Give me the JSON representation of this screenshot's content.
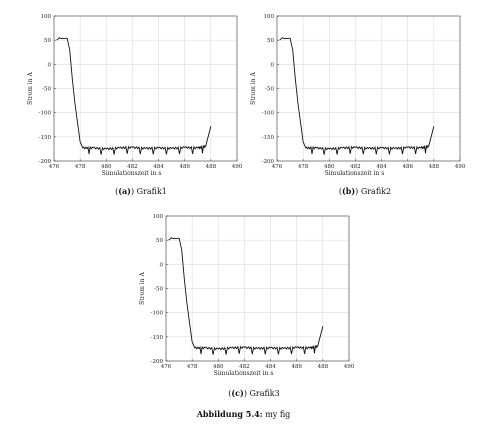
{
  "chart_data": [
    {
      "type": "line",
      "xlabel": "Simulationszeit in s",
      "ylabel": "Strom in A",
      "xlim": [
        476,
        490
      ],
      "ylim": [
        -200,
        100
      ],
      "xticks": [
        476,
        478,
        480,
        482,
        484,
        486,
        488,
        490
      ],
      "yticks": [
        -200,
        -150,
        -100,
        -50,
        0,
        50,
        100
      ],
      "grid": true,
      "series": [
        {
          "x": [
            476.2,
            476.4,
            476.6,
            477.0,
            477.2,
            477.4,
            477.6,
            477.8,
            478.0,
            478.2,
            479.0,
            480.0,
            481.0,
            482.0,
            483.0,
            484.0,
            485.0,
            486.0,
            487.0,
            487.6,
            488.0
          ],
          "y": [
            50,
            55,
            53,
            54,
            30,
            -30,
            -80,
            -120,
            -160,
            -173,
            -173,
            -175,
            -173,
            -172,
            -174,
            -173,
            -174,
            -172,
            -173,
            -170,
            -128
          ]
        }
      ]
    },
    {
      "type": "line",
      "xlabel": "Simulationszeit in s",
      "ylabel": "Strom in A",
      "xlim": [
        476,
        490
      ],
      "ylim": [
        -200,
        100
      ],
      "xticks": [
        476,
        478,
        480,
        482,
        484,
        486,
        488,
        490
      ],
      "yticks": [
        -200,
        -150,
        -100,
        -50,
        0,
        50,
        100
      ],
      "grid": true,
      "series": [
        {
          "x": [
            476.2,
            476.4,
            476.6,
            477.0,
            477.2,
            477.4,
            477.6,
            477.8,
            478.0,
            478.2,
            479.0,
            480.0,
            481.0,
            482.0,
            483.0,
            484.0,
            485.0,
            486.0,
            487.0,
            487.6,
            488.0
          ],
          "y": [
            50,
            55,
            53,
            54,
            30,
            -30,
            -80,
            -120,
            -160,
            -173,
            -173,
            -175,
            -173,
            -172,
            -174,
            -173,
            -174,
            -172,
            -173,
            -170,
            -128
          ]
        }
      ]
    },
    {
      "type": "line",
      "xlabel": "Simulationszeit in s",
      "ylabel": "Strom in A",
      "xlim": [
        476,
        490
      ],
      "ylim": [
        -200,
        100
      ],
      "xticks": [
        476,
        478,
        480,
        482,
        484,
        486,
        488,
        490
      ],
      "yticks": [
        -200,
        -150,
        -100,
        -50,
        0,
        50,
        100
      ],
      "grid": true,
      "series": [
        {
          "x": [
            476.2,
            476.4,
            476.6,
            477.0,
            477.2,
            477.4,
            477.6,
            477.8,
            478.0,
            478.2,
            479.0,
            480.0,
            481.0,
            482.0,
            483.0,
            484.0,
            485.0,
            486.0,
            487.0,
            487.6,
            488.0
          ],
          "y": [
            50,
            55,
            53,
            54,
            30,
            -30,
            -80,
            -120,
            -160,
            -173,
            -173,
            -175,
            -173,
            -172,
            -174,
            -173,
            -174,
            -172,
            -173,
            -170,
            -128
          ]
        }
      ]
    }
  ],
  "captions": {
    "a": {
      "label": "(a)",
      "text": "Grafik1"
    },
    "b": {
      "label": "(b)",
      "text": "Grafik2"
    },
    "c": {
      "label": "(c)",
      "text": "Grafik3"
    }
  },
  "figure_caption": {
    "label": "Abbildung 5.4:",
    "text": "my fig"
  }
}
